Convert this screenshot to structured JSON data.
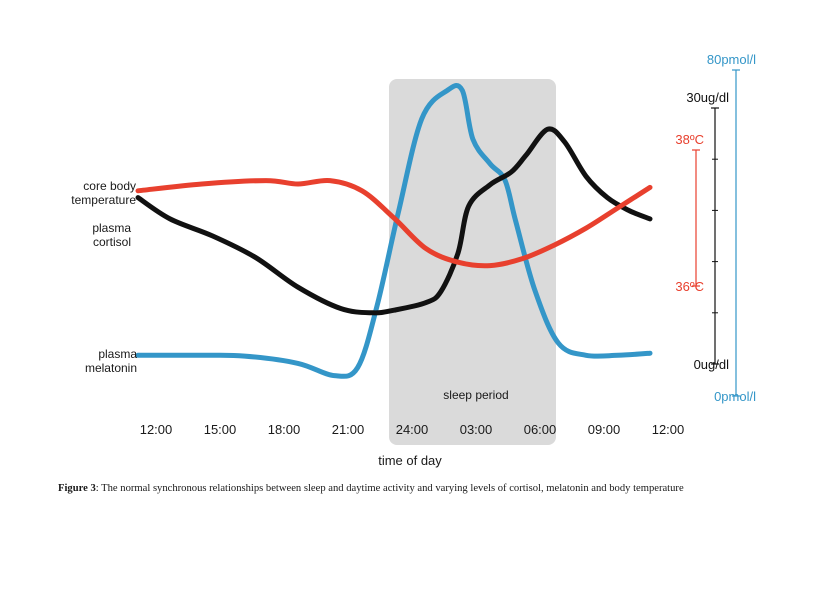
{
  "chart_data": {
    "type": "line",
    "x_tick_labels": [
      "12:00",
      "15:00",
      "18:00",
      "21:00",
      "24:00",
      "03:00",
      "06:00",
      "09:00",
      "12:00"
    ],
    "xlabel": "time of day",
    "shaded_region": {
      "label": "sleep period",
      "from": "23:00",
      "to": "07:00"
    },
    "series": [
      {
        "name_lines": [
          "core body",
          "temperature"
        ],
        "color": "#e8402e",
        "axis": "temperature",
        "points": [
          [
            0,
            37.4
          ],
          [
            3,
            37.5
          ],
          [
            6,
            37.55
          ],
          [
            7.5,
            37.5
          ],
          [
            9,
            37.55
          ],
          [
            10.5,
            37.4
          ],
          [
            12,
            37.0
          ],
          [
            13.5,
            36.55
          ],
          [
            15,
            36.35
          ],
          [
            16.5,
            36.3
          ],
          [
            18,
            36.4
          ],
          [
            19.5,
            36.6
          ],
          [
            21,
            36.85
          ],
          [
            22.5,
            37.15
          ],
          [
            24,
            37.45
          ]
        ]
      },
      {
        "name_lines": [
          "plasma",
          "cortisol"
        ],
        "color": "#111111",
        "axis": "cortisol",
        "points": [
          [
            0,
            19.5
          ],
          [
            1.5,
            17
          ],
          [
            3.5,
            15
          ],
          [
            5.5,
            12.5
          ],
          [
            7.5,
            9
          ],
          [
            9.5,
            6.5
          ],
          [
            11,
            6
          ],
          [
            12,
            6.3
          ],
          [
            13.5,
            7.2
          ],
          [
            14.2,
            8.5
          ],
          [
            15,
            13
          ],
          [
            15.5,
            18.5
          ],
          [
            16.5,
            21
          ],
          [
            17.5,
            22.5
          ],
          [
            18.2,
            24.5
          ],
          [
            19.2,
            27.5
          ],
          [
            20,
            26
          ],
          [
            21,
            22
          ],
          [
            22,
            19.5
          ],
          [
            23,
            18
          ],
          [
            24,
            17
          ]
        ]
      },
      {
        "name_lines": [
          "plasma",
          "melatonin"
        ],
        "color": "#3496c8",
        "axis": "melatonin",
        "points": [
          [
            0,
            10
          ],
          [
            3,
            10
          ],
          [
            5,
            9.8
          ],
          [
            7.5,
            8
          ],
          [
            9.2,
            5
          ],
          [
            10.3,
            7
          ],
          [
            11.2,
            22
          ],
          [
            12.2,
            45
          ],
          [
            13.3,
            68
          ],
          [
            14.5,
            75
          ],
          [
            15.2,
            75
          ],
          [
            15.7,
            63
          ],
          [
            16.5,
            57
          ],
          [
            17.2,
            53
          ],
          [
            17.7,
            43
          ],
          [
            18.6,
            26
          ],
          [
            19.7,
            13
          ],
          [
            21,
            10
          ],
          [
            22.5,
            10
          ],
          [
            24,
            10.5
          ]
        ]
      }
    ],
    "axes": {
      "temperature": {
        "color": "#e8402e",
        "top_label": "38ºC",
        "bottom_label": "36ºC",
        "range": [
          36,
          38
        ]
      },
      "cortisol": {
        "color": "#111111",
        "top_label": "30ug/dl",
        "bottom_label": "0ug/dl",
        "range": [
          0,
          30
        ]
      },
      "melatonin": {
        "color": "#3496c8",
        "top_label": "80pmol/l",
        "bottom_label": "0pmol/l",
        "range": [
          0,
          80
        ]
      }
    },
    "grid": false
  },
  "caption": {
    "label": "Figure 3",
    "text": ": The normal synchronous relationships between sleep and daytime activity and varying levels of cortisol, melatonin and body temperature"
  }
}
